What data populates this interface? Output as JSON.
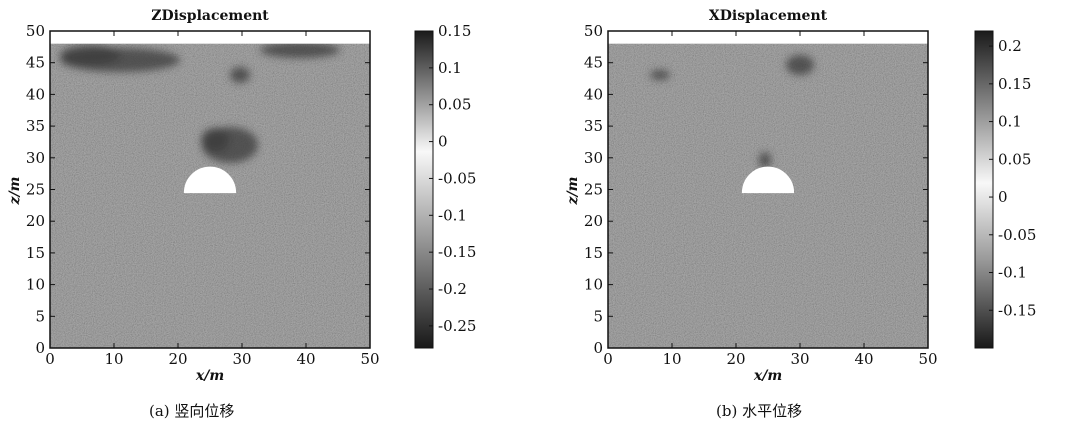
{
  "chart_data": [
    {
      "type": "heatmap",
      "title": "ZDisplacement",
      "xlabel": "x/m",
      "ylabel": "z/m",
      "xlim": [
        0,
        50
      ],
      "ylim": [
        0,
        50
      ],
      "xticks": [
        "0",
        "10",
        "20",
        "30",
        "40",
        "50"
      ],
      "yticks": [
        "0",
        "5",
        "10",
        "15",
        "20",
        "25",
        "30",
        "35",
        "40",
        "45",
        "50"
      ],
      "colorbar": {
        "range": [
          -0.28,
          0.15
        ],
        "ticks": [
          "0.15",
          "0.1",
          "0.05",
          "0",
          "-0.05",
          "-0.1",
          "-0.15",
          "-0.2",
          "-0.25"
        ]
      },
      "void": {
        "shape": "semicircle",
        "center_x": 25,
        "base_z": 24.5,
        "radius": 4
      },
      "ground_surface_z": 48,
      "caption": "(a) 竖向位移"
    },
    {
      "type": "heatmap",
      "title": "XDisplacement",
      "xlabel": "x/m",
      "ylabel": "z/m",
      "xlim": [
        0,
        50
      ],
      "ylim": [
        0,
        50
      ],
      "xticks": [
        "0",
        "10",
        "20",
        "30",
        "40",
        "50"
      ],
      "yticks": [
        "0",
        "5",
        "10",
        "15",
        "20",
        "25",
        "30",
        "35",
        "40",
        "45",
        "50"
      ],
      "colorbar": {
        "range": [
          -0.2,
          0.22
        ],
        "ticks": [
          "0.2",
          "0.15",
          "0.1",
          "0.05",
          "0",
          "-0.05",
          "-0.1",
          "-0.15"
        ]
      },
      "void": {
        "shape": "semicircle",
        "center_x": 25,
        "base_z": 24.5,
        "radius": 4
      },
      "ground_surface_z": 48,
      "caption": "(b) 水平位移"
    }
  ]
}
